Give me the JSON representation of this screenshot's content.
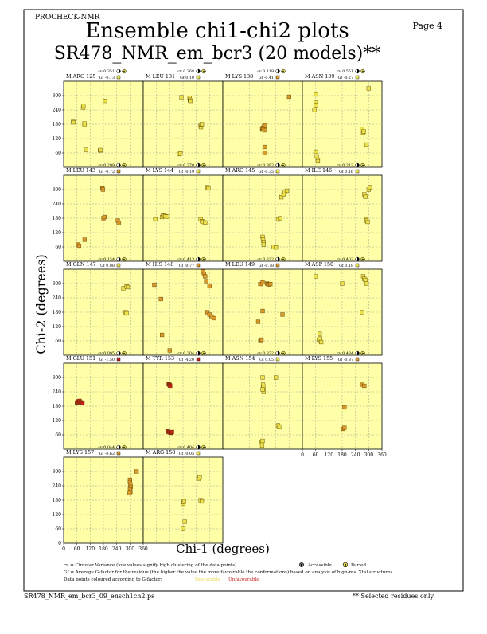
{
  "header": {
    "program": "PROCHECK-NMR",
    "page_label": "Page 4",
    "title": "Ensemble chi1-chi2 plots",
    "subtitle": "SR478_NMR_em_bcr3 (20 models)**"
  },
  "axes": {
    "ylabel": "Chi-2 (degrees)",
    "xlabel": "Chi-1 (degrees)",
    "ticks": [
      0,
      60,
      120,
      180,
      240,
      300,
      360
    ],
    "ylim": [
      0,
      360
    ],
    "xlim": [
      0,
      360
    ],
    "grid_dashed": true
  },
  "colors": {
    "panel_bg": "#ffffa8",
    "favourable": "#e9e24b",
    "unfavourable": "#c4201a",
    "mid": "#d89a2a"
  },
  "chart_data": [
    {
      "type": "scatter",
      "residue": "M ARG 125",
      "cv": "0.351",
      "gf": "-0.13",
      "points": [
        [
          43,
          190
        ],
        [
          44,
          188
        ],
        [
          94,
          183
        ],
        [
          95,
          178
        ],
        [
          88,
          250
        ],
        [
          89,
          258
        ],
        [
          102,
          73
        ],
        [
          165,
          70
        ],
        [
          166,
          72
        ],
        [
          188,
          278
        ]
      ]
    },
    {
      "type": "scatter",
      "residue": "M LEU 131",
      "cv": "0.368",
      "gf": "0.10",
      "points": [
        [
          173,
          293
        ],
        [
          210,
          290
        ],
        [
          211,
          282
        ],
        [
          213,
          278
        ],
        [
          162,
          55
        ],
        [
          168,
          58
        ],
        [
          260,
          173
        ],
        [
          261,
          168
        ],
        [
          262,
          178
        ],
        [
          265,
          180
        ]
      ]
    },
    {
      "type": "scatter",
      "residue": "M LYS 138",
      "cv": "0.119",
      "gf": "-0.41",
      "points": [
        [
          178,
          158
        ],
        [
          179,
          162
        ],
        [
          182,
          160
        ],
        [
          182,
          165
        ],
        [
          188,
          172
        ],
        [
          190,
          85
        ],
        [
          190,
          60
        ],
        [
          190,
          155
        ],
        [
          192,
          175
        ],
        [
          300,
          295
        ]
      ]
    },
    {
      "type": "scatter",
      "residue": "M ASN 139",
      "cv": "0.551",
      "gf": "-0.27",
      "points": [
        [
          62,
          305
        ],
        [
          60,
          270
        ],
        [
          62,
          260
        ],
        [
          55,
          240
        ],
        [
          62,
          65
        ],
        [
          65,
          45
        ],
        [
          70,
          30
        ],
        [
          70,
          25
        ],
        [
          270,
          160
        ],
        [
          275,
          145
        ],
        [
          278,
          150
        ],
        [
          290,
          95
        ],
        [
          300,
          330
        ]
      ]
    },
    {
      "type": "scatter",
      "residue": "M LEU 143",
      "cv": "0.299",
      "gf": "-0.72",
      "points": [
        [
          175,
          305
        ],
        [
          178,
          300
        ],
        [
          180,
          180
        ],
        [
          185,
          185
        ],
        [
          65,
          70
        ],
        [
          70,
          65
        ],
        [
          95,
          90
        ],
        [
          245,
          170
        ],
        [
          250,
          160
        ]
      ]
    },
    {
      "type": "scatter",
      "residue": "M LYS 144",
      "cv": "0.370",
      "gf": "-0.19",
      "points": [
        [
          55,
          175
        ],
        [
          85,
          185
        ],
        [
          90,
          192
        ],
        [
          95,
          190
        ],
        [
          100,
          188
        ],
        [
          110,
          186
        ],
        [
          260,
          175
        ],
        [
          265,
          168
        ],
        [
          270,
          165
        ],
        [
          280,
          162
        ],
        [
          290,
          310
        ],
        [
          295,
          305
        ]
      ]
    },
    {
      "type": "scatter",
      "residue": "M ARG 145",
      "cv": "0.382",
      "gf": "-0.35",
      "points": [
        [
          180,
          102
        ],
        [
          182,
          90
        ],
        [
          185,
          80
        ],
        [
          185,
          70
        ],
        [
          230,
          60
        ],
        [
          240,
          58
        ],
        [
          250,
          175
        ],
        [
          260,
          180
        ],
        [
          265,
          268
        ],
        [
          275,
          280
        ],
        [
          280,
          290
        ],
        [
          290,
          295
        ]
      ]
    },
    {
      "type": "scatter",
      "residue": "M ILE 146",
      "cv": "0.213",
      "gf": "0.16",
      "points": [
        [
          280,
          280
        ],
        [
          285,
          270
        ],
        [
          288,
          175
        ],
        [
          290,
          170
        ],
        [
          295,
          165
        ],
        [
          300,
          300
        ],
        [
          305,
          310
        ]
      ]
    },
    {
      "type": "scatter",
      "residue": "M GLN 147",
      "cv": "0.154",
      "gf": "0.88",
      "points": [
        [
          270,
          280
        ],
        [
          285,
          288
        ],
        [
          290,
          285
        ],
        [
          280,
          180
        ],
        [
          285,
          175
        ]
      ]
    },
    {
      "type": "scatter",
      "residue": "M HIS 148",
      "cv": "0.413",
      "gf": "-0.77",
      "points": [
        [
          50,
          295
        ],
        [
          80,
          235
        ],
        [
          85,
          85
        ],
        [
          120,
          20
        ],
        [
          270,
          350
        ],
        [
          275,
          340
        ],
        [
          280,
          330
        ],
        [
          285,
          310
        ],
        [
          300,
          290
        ],
        [
          290,
          180
        ],
        [
          300,
          170
        ],
        [
          310,
          160
        ],
        [
          320,
          155
        ]
      ]
    },
    {
      "type": "scatter",
      "residue": "M LEU 149",
      "cv": "0.322",
      "gf": "-0.78",
      "points": [
        [
          170,
          298
        ],
        [
          180,
          305
        ],
        [
          200,
          300
        ],
        [
          205,
          298
        ],
        [
          210,
          296
        ],
        [
          215,
          298
        ],
        [
          180,
          185
        ],
        [
          160,
          140
        ],
        [
          170,
          60
        ],
        [
          175,
          65
        ],
        [
          270,
          170
        ]
      ]
    },
    {
      "type": "scatter",
      "residue": "M ASP 150",
      "cv": "0.402",
      "gf": "0.18",
      "points": [
        [
          60,
          330
        ],
        [
          180,
          300
        ],
        [
          270,
          180
        ],
        [
          275,
          330
        ],
        [
          280,
          320
        ],
        [
          285,
          315
        ],
        [
          290,
          300
        ],
        [
          80,
          60
        ],
        [
          75,
          65
        ],
        [
          80,
          70
        ],
        [
          78,
          90
        ],
        [
          85,
          55
        ]
      ]
    },
    {
      "type": "scatter",
      "residue": "M GLU 151",
      "cv": "0.005",
      "gf": "-1.50",
      "points": [
        [
          60,
          195
        ],
        [
          63,
          198
        ],
        [
          66,
          200
        ],
        [
          70,
          198
        ],
        [
          72,
          202
        ],
        [
          78,
          196
        ],
        [
          82,
          194
        ],
        [
          85,
          192
        ]
      ]
    },
    {
      "type": "scatter",
      "residue": "M TYR 153",
      "cv": "0.204",
      "gf": "-4.20",
      "points": [
        [
          115,
          272
        ],
        [
          118,
          270
        ],
        [
          120,
          268
        ],
        [
          122,
          265
        ],
        [
          110,
          75
        ],
        [
          115,
          72
        ],
        [
          120,
          70
        ],
        [
          125,
          68
        ],
        [
          128,
          70
        ],
        [
          130,
          72
        ]
      ]
    },
    {
      "type": "scatter",
      "residue": "M ASN 154",
      "cv": "0.332",
      "gf": "0.05",
      "points": [
        [
          180,
          300
        ],
        [
          182,
          270
        ],
        [
          184,
          260
        ],
        [
          185,
          240
        ],
        [
          180,
          250
        ],
        [
          175,
          30
        ],
        [
          178,
          15
        ],
        [
          180,
          35
        ],
        [
          240,
          300
        ],
        [
          250,
          100
        ],
        [
          255,
          95
        ]
      ]
    },
    {
      "type": "scatter",
      "residue": "M LYS 155",
      "cv": "0.434",
      "gf": "-0.87",
      "points": [
        [
          185,
          85
        ],
        [
          190,
          90
        ],
        [
          270,
          270
        ],
        [
          280,
          265
        ],
        [
          190,
          175
        ]
      ]
    },
    {
      "type": "scatter",
      "residue": "M LYS 157",
      "cv": "0.044",
      "gf": "-0.62",
      "points": [
        [
          330,
          300
        ],
        [
          300,
          265
        ],
        [
          300,
          255
        ],
        [
          302,
          245
        ],
        [
          304,
          235
        ],
        [
          300,
          225
        ],
        [
          302,
          215
        ],
        [
          298,
          210
        ]
      ]
    },
    {
      "type": "scatter",
      "residue": "M ARG 158",
      "cv": "0.404",
      "gf": "-0.05",
      "points": [
        [
          180,
          165
        ],
        [
          182,
          172
        ],
        [
          185,
          175
        ],
        [
          188,
          90
        ],
        [
          180,
          60
        ],
        [
          250,
          270
        ],
        [
          255,
          275
        ],
        [
          260,
          180
        ],
        [
          265,
          175
        ]
      ]
    }
  ],
  "legend": {
    "cv_line_a": "cv = Circular Variance (low values signify high clustering of the data points).",
    "accessible": "Accessible",
    "buried": "Buried",
    "gf_line": "Gf = Average G-factor for the residue (the higher the value the more favourable the conformations) based on analysis of high-res. Xtal structures",
    "colour_line": "Data points coloured according to G-factor:",
    "favourable": "Favourable",
    "unfavourable": "Unfavourable"
  },
  "footer": {
    "filename": "SR478_NMR_em_bcr3_09_ensch1ch2.ps",
    "note": "** Selected residues only"
  }
}
